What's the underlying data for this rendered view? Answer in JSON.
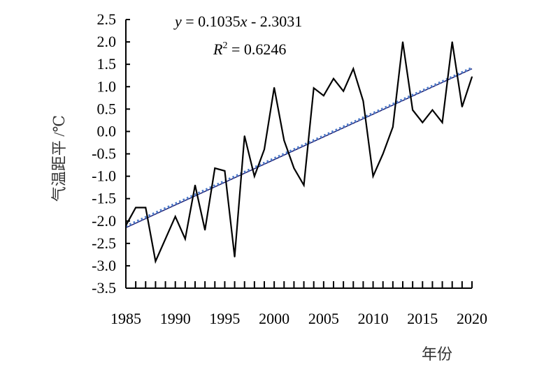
{
  "chart_data": {
    "type": "line",
    "title": "",
    "xlabel": "年份",
    "ylabel": "气温距平 /℃",
    "xlim": [
      1985,
      2020
    ],
    "ylim": [
      -3.5,
      2.5
    ],
    "x_ticks": [
      1985,
      1990,
      1995,
      2000,
      2005,
      2010,
      2015,
      2020
    ],
    "y_ticks": [
      -3.5,
      -3.0,
      -2.5,
      -2.0,
      -1.5,
      -1.0,
      -0.5,
      0.0,
      0.5,
      1.0,
      1.5,
      2.0,
      2.5
    ],
    "y_tick_labels": [
      "-3.5",
      "-3.0",
      "-2.5",
      "-2.0",
      "-1.5",
      "-1.0",
      "-0.5",
      "0.0",
      "0.5",
      "1.0",
      "1.5",
      "2.0",
      "2.5"
    ],
    "grid": false,
    "series": [
      {
        "x": [
          1985,
          1986,
          1987,
          1988,
          1989,
          1990,
          1991,
          1992,
          1993,
          1994,
          1995,
          1996,
          1997,
          1998,
          1999,
          2000,
          2001,
          2002,
          2003,
          2004,
          2005,
          2006,
          2007,
          2008,
          2009,
          2010,
          2011,
          2012,
          2013,
          2014,
          2015,
          2016,
          2017,
          2018,
          2019,
          2020
        ],
        "values": [
          -2.1,
          -1.7,
          -1.7,
          -2.9,
          -2.4,
          -1.9,
          -2.4,
          -1.2,
          -2.2,
          -0.82,
          -0.88,
          -2.8,
          -0.1,
          -1.0,
          -0.4,
          0.98,
          -0.2,
          -0.82,
          -1.2,
          0.97,
          0.8,
          1.18,
          0.9,
          1.4,
          0.68,
          -1.0,
          -0.5,
          0.1,
          2.0,
          0.48,
          0.2,
          0.48,
          0.2,
          2.0,
          0.55,
          1.22
        ],
        "color": "#000000"
      }
    ],
    "trendlines": [
      {
        "style": "solid",
        "color": "#1a1a6e",
        "start": [
          1985,
          -2.15
        ],
        "end": [
          2020,
          1.4
        ]
      },
      {
        "style": "dotted",
        "color": "#4a78c8",
        "start": [
          1985,
          -2.12
        ],
        "end": [
          2020,
          1.42
        ]
      }
    ],
    "annotations": {
      "equation": {
        "y_var": "y",
        "eq": " = 0.1035",
        "x_var": "x",
        "rest": " - 2.3031"
      },
      "r_squared": {
        "r_var": "R",
        "sup": "2",
        "rest": " = 0.6246"
      }
    }
  }
}
